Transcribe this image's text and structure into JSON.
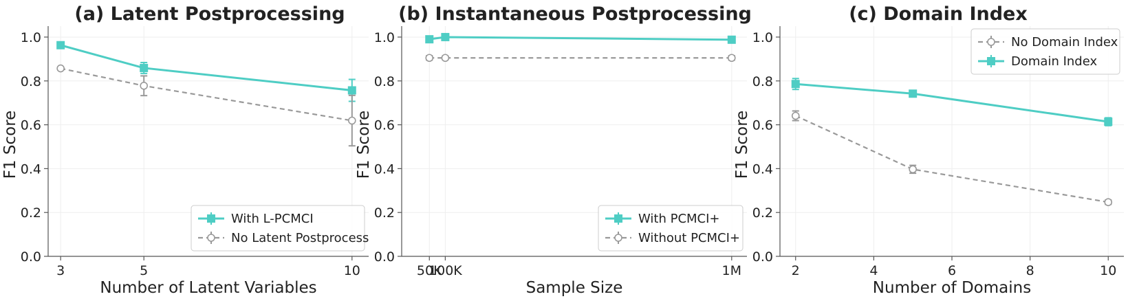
{
  "chart_data": [
    {
      "type": "line",
      "title": "(a) Latent Postprocessing",
      "xlabel": "Number of Latent Variables",
      "ylabel": "F1 Score",
      "x": [
        3,
        5,
        10
      ],
      "xlim": [
        2.7,
        10.4
      ],
      "ylim": [
        0,
        1.05
      ],
      "xticks": [
        3,
        5,
        10
      ],
      "xtick_labels": [
        "3",
        "5",
        "10"
      ],
      "yticks": [
        0.0,
        0.2,
        0.4,
        0.6,
        0.8,
        1.0
      ],
      "ytick_labels": [
        "0.0",
        "0.2",
        "0.4",
        "0.6",
        "0.8",
        "1.0"
      ],
      "grid": true,
      "legend_position": "lower-right",
      "series": [
        {
          "name": "With L-PCMCI",
          "values": [
            0.963,
            0.859,
            0.757
          ],
          "errors": [
            0.008,
            0.025,
            0.05
          ],
          "color": "#4ecdc4",
          "style": "solid",
          "marker": "square"
        },
        {
          "name": "No Latent Postprocess",
          "values": [
            0.857,
            0.778,
            0.619
          ],
          "errors": [
            0.0,
            0.045,
            0.115
          ],
          "color": "#999999",
          "style": "dashed",
          "marker": "open-circle"
        }
      ]
    },
    {
      "type": "line",
      "title": "(b) Instantaneous Postprocessing",
      "xlabel": "Sample Size",
      "ylabel": "F1 Score",
      "x": [
        50,
        100,
        1000
      ],
      "xlim": [
        -37,
        1048
      ],
      "ylim": [
        0,
        1.05
      ],
      "xticks": [
        50,
        100,
        1000
      ],
      "xtick_labels": [
        "50K",
        "100K",
        "1M"
      ],
      "yticks": [
        0.0,
        0.2,
        0.4,
        0.6,
        0.8,
        1.0
      ],
      "ytick_labels": [
        "0.0",
        "0.2",
        "0.4",
        "0.6",
        "0.8",
        "1.0"
      ],
      "grid": true,
      "legend_position": "lower-right",
      "series": [
        {
          "name": "With PCMCI+",
          "values": [
            0.99,
            1.0,
            0.988
          ],
          "errors": [
            0.012,
            0.008,
            0.015
          ],
          "color": "#4ecdc4",
          "style": "solid",
          "marker": "square"
        },
        {
          "name": "Without PCMCI+",
          "values": [
            0.905,
            0.905,
            0.905
          ],
          "errors": [
            0.01,
            0.008,
            0.01
          ],
          "color": "#999999",
          "style": "dashed",
          "marker": "open-circle"
        }
      ]
    },
    {
      "type": "line",
      "title": "(c) Domain Index",
      "xlabel": "Number of Domains",
      "ylabel": "F1 Score",
      "x": [
        2,
        5,
        10
      ],
      "xlim": [
        1.6,
        10.4
      ],
      "ylim": [
        0,
        1.05
      ],
      "xticks": [
        2,
        4,
        6,
        8,
        10
      ],
      "xtick_labels": [
        "2",
        "4",
        "6",
        "8",
        "10"
      ],
      "yticks": [
        0.0,
        0.2,
        0.4,
        0.6,
        0.8,
        1.0
      ],
      "ytick_labels": [
        "0.0",
        "0.2",
        "0.4",
        "0.6",
        "0.8",
        "1.0"
      ],
      "grid": true,
      "legend_position": "upper-right",
      "series": [
        {
          "name": "No Domain Index",
          "values": [
            0.641,
            0.397,
            0.247
          ],
          "errors": [
            0.022,
            0.018,
            0.01
          ],
          "color": "#999999",
          "style": "dashed",
          "marker": "open-circle"
        },
        {
          "name": "Domain Index",
          "values": [
            0.786,
            0.742,
            0.614
          ],
          "errors": [
            0.025,
            0.015,
            0.018
          ],
          "color": "#4ecdc4",
          "style": "solid",
          "marker": "square"
        }
      ]
    }
  ]
}
